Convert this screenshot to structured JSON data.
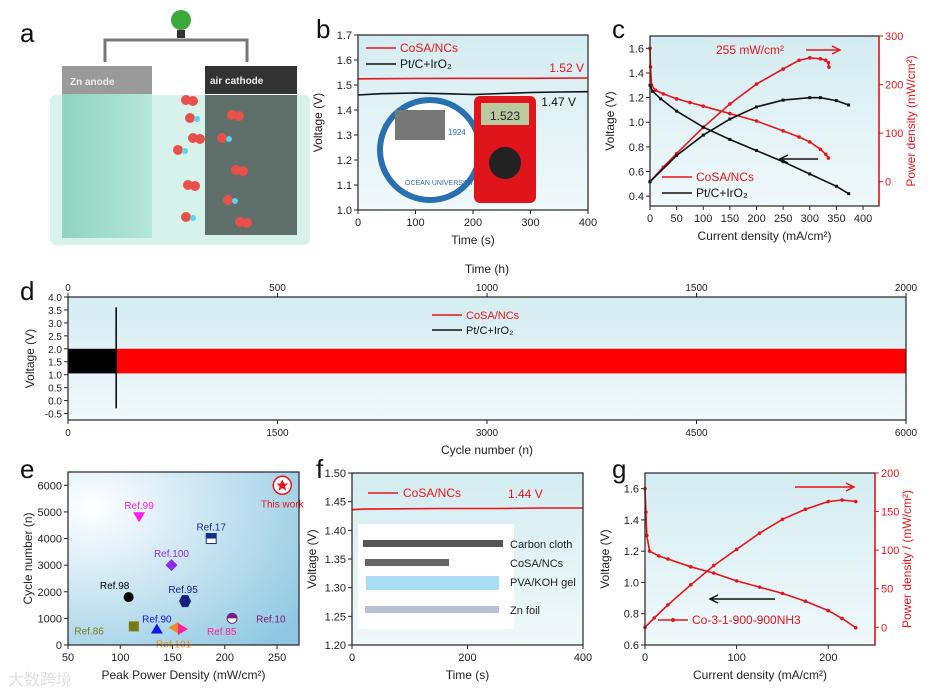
{
  "panel_labels": [
    "a",
    "b",
    "c",
    "d",
    "e",
    "f",
    "g"
  ],
  "illustration": {
    "anode_label": "Zn anode",
    "cathode_label": "air cathode"
  },
  "watermark": "大数跨境",
  "colors": {
    "red": "#e8141b",
    "black": "#111111",
    "bg_top": "#d6edf2",
    "bg_bottom": "#eef8fa"
  },
  "chart_data": [
    {
      "panel": "b",
      "type": "line",
      "title": "",
      "xlabel": "Time (s)",
      "ylabel": "Voltage (V)",
      "xlim": [
        0,
        400
      ],
      "ylim": [
        1.0,
        1.7
      ],
      "xticks": [
        "0",
        "100",
        "200",
        "300",
        "400"
      ],
      "yticks": [
        "1.0",
        "1.1",
        "1.2",
        "1.3",
        "1.4",
        "1.5",
        "1.6",
        "1.7"
      ],
      "series": [
        {
          "name": "CoSA/NCs",
          "color": "#e8141b",
          "x": [
            0,
            100,
            200,
            300,
            400
          ],
          "y": [
            1.525,
            1.526,
            1.527,
            1.527,
            1.528
          ]
        },
        {
          "name": "Pt/C+IrO₂",
          "color": "#111111",
          "x": [
            0,
            40,
            100,
            150,
            200,
            250,
            300,
            350,
            400
          ],
          "y": [
            1.46,
            1.465,
            1.468,
            1.465,
            1.462,
            1.466,
            1.47,
            1.472,
            1.473
          ]
        }
      ],
      "annotations": [
        "1.52 V",
        "1.47 V"
      ],
      "photo_text": [
        "OCEAN UNIVERSITY",
        "1924",
        "1.523"
      ]
    },
    {
      "panel": "c",
      "type": "line",
      "title": "",
      "xlabel": "Current density  (mA/cm²)",
      "ylabel": "Voltage (V)",
      "y2label": "Power density (mW/cm²)",
      "xlim": [
        0,
        430
      ],
      "ylim": [
        0.32,
        1.7
      ],
      "y2lim": [
        -50,
        300
      ],
      "xticks": [
        "0",
        "50",
        "100",
        "150",
        "200",
        "250",
        "300",
        "350",
        "400"
      ],
      "yticks": [
        "0.4",
        "0.6",
        "0.8",
        "1.0",
        "1.2",
        "1.4",
        "1.6"
      ],
      "y2ticks": [
        "0",
        "100",
        "200",
        "300"
      ],
      "series": [
        {
          "name": "CoSA/NCs",
          "axis": "left",
          "color": "#e8141b",
          "x": [
            0,
            1,
            3,
            10,
            25,
            50,
            75,
            100,
            150,
            200,
            250,
            280,
            300,
            320,
            330,
            335
          ],
          "y": [
            1.6,
            1.45,
            1.3,
            1.26,
            1.23,
            1.19,
            1.16,
            1.13,
            1.07,
            1.01,
            0.93,
            0.88,
            0.84,
            0.78,
            0.74,
            0.71
          ]
        },
        {
          "name": "CoSA/NCs power",
          "axis": "right",
          "color": "#e8141b",
          "x": [
            0,
            25,
            50,
            100,
            150,
            200,
            250,
            280,
            300,
            320,
            330,
            335,
            336
          ],
          "y": [
            0,
            30,
            58,
            112,
            160,
            201,
            232,
            250,
            255,
            253,
            250,
            245,
            236
          ]
        },
        {
          "name": "Pt/C+IrO₂",
          "axis": "left",
          "color": "#111111",
          "x": [
            0,
            5,
            20,
            50,
            100,
            150,
            200,
            250,
            300,
            350,
            373
          ],
          "y": [
            1.3,
            1.25,
            1.19,
            1.09,
            0.96,
            0.86,
            0.77,
            0.68,
            0.58,
            0.48,
            0.42
          ]
        },
        {
          "name": "Pt/C+IrO₂ power",
          "axis": "right",
          "color": "#111111",
          "x": [
            0,
            50,
            100,
            150,
            200,
            250,
            300,
            320,
            350,
            373
          ],
          "y": [
            0,
            54,
            96,
            129,
            154,
            168,
            173,
            173,
            167,
            158
          ]
        }
      ],
      "legend": [
        "CoSA/NCs",
        "Pt/C+IrO₂"
      ],
      "annotations": [
        "255 mW/cm²"
      ]
    },
    {
      "panel": "d",
      "type": "area",
      "title": "",
      "xlabel": "Cycle number (n)",
      "x2label": "Time (h)",
      "ylabel": "Voltage (V)",
      "xlim": [
        0,
        6000
      ],
      "x2lim": [
        0,
        2000
      ],
      "ylim": [
        -0.75,
        4.0
      ],
      "xticks": [
        "0",
        "1500",
        "3000",
        "4500",
        "6000"
      ],
      "x2ticks": [
        "0",
        "500",
        "1000",
        "1500",
        "2000"
      ],
      "yticks": [
        "-0.5",
        "0.0",
        "0.5",
        "1.0",
        "1.5",
        "2.0",
        "2.5",
        "3.0",
        "3.5",
        "4.0"
      ],
      "series": [
        {
          "name": "CoSA/NCs",
          "color": "#ff0000",
          "x_range": [
            340,
            6000
          ],
          "y_band": [
            1.05,
            2.0
          ]
        },
        {
          "name": "Pt/C+IrO₂",
          "color": "#000000",
          "x_range": [
            0,
            345
          ],
          "y_band": [
            1.05,
            2.0
          ],
          "spike_y": [
            -0.3,
            3.6
          ]
        }
      ],
      "legend": [
        "CoSA/NCs",
        "Pt/C+IrO₂"
      ]
    },
    {
      "panel": "e",
      "type": "scatter",
      "title": "",
      "xlabel": "Peak Power Density (mW/cm²)",
      "ylabel": "Cycle number (n)",
      "xlim": [
        50,
        271
      ],
      "ylim": [
        0,
        6500
      ],
      "xticks": [
        "50",
        "100",
        "150",
        "200",
        "250"
      ],
      "yticks": [
        "0",
        "1000",
        "2000",
        "3000",
        "4000",
        "5000",
        "6000"
      ],
      "points": [
        {
          "label": "This work",
          "x": 255,
          "y": 6000,
          "color": "#e8141b",
          "shape": "star-circle"
        },
        {
          "label": "Ref.99",
          "x": 118,
          "y": 4800,
          "color": "#ff1ee8",
          "shape": "triangle-down"
        },
        {
          "label": "Ref.17",
          "x": 187,
          "y": 4000,
          "color": "#1a2a8c",
          "shape": "square-half"
        },
        {
          "label": "Ref.100",
          "x": 149,
          "y": 3000,
          "color": "#8b2cf0",
          "shape": "diamond"
        },
        {
          "label": "Ref.98",
          "x": 108,
          "y": 1800,
          "color": "#000000",
          "shape": "circle"
        },
        {
          "label": "Ref.95",
          "x": 162,
          "y": 1650,
          "color": "#14207a",
          "shape": "hexagon"
        },
        {
          "label": "Ref.10",
          "x": 207,
          "y": 1000,
          "color": "#7a1a7a",
          "shape": "circle-half"
        },
        {
          "label": "Ref.86",
          "x": 113,
          "y": 700,
          "color": "#7a7a14",
          "shape": "square"
        },
        {
          "label": "Ref.90",
          "x": 135,
          "y": 620,
          "color": "#1414e8",
          "shape": "triangle-up"
        },
        {
          "label": "Ref.101",
          "x": 151,
          "y": 650,
          "color": "#f08a1e",
          "shape": "triangle-left"
        },
        {
          "label": "Ref.85",
          "x": 160,
          "y": 600,
          "color": "#ff1e9a",
          "shape": "triangle-right"
        }
      ]
    },
    {
      "panel": "f",
      "type": "line",
      "title": "",
      "xlabel": "Time (s)",
      "ylabel": "Voltage (V)",
      "xlim": [
        0,
        400
      ],
      "ylim": [
        1.2,
        1.5
      ],
      "xticks": [
        "0",
        "200",
        "400"
      ],
      "yticks": [
        "1.20",
        "1.25",
        "1.30",
        "1.35",
        "1.40",
        "1.45",
        "1.50"
      ],
      "series": [
        {
          "name": "CoSA/NCs",
          "color": "#e8141b",
          "x": [
            0,
            20,
            150,
            250,
            330,
            400
          ],
          "y": [
            1.436,
            1.437,
            1.438,
            1.438,
            1.439,
            1.439
          ]
        }
      ],
      "annotations": [
        "1.44 V"
      ],
      "layers": [
        "Carbon cloth",
        "CoSA/NCs",
        "PVA/KOH gel",
        "Zn foil"
      ]
    },
    {
      "panel": "g",
      "type": "line",
      "title": "",
      "xlabel": "Current density  (mA/cm²)",
      "ylabel": "Voltage (V)",
      "y2label": "Power density / (mW/cm²)",
      "xlim": [
        0,
        251
      ],
      "ylim": [
        0.6,
        1.7
      ],
      "y2lim": [
        -23,
        200
      ],
      "xticks": [
        "0",
        "100",
        "200"
      ],
      "yticks": [
        "0.6",
        "0.8",
        "1.0",
        "1.2",
        "1.4",
        "1.6"
      ],
      "y2ticks": [
        "0",
        "50",
        "100",
        "150",
        "200"
      ],
      "series": [
        {
          "name": "Co-3-1-900-900NH3",
          "axis": "left",
          "color": "#e8141b",
          "x": [
            0,
            1,
            2,
            5,
            15,
            25,
            50,
            75,
            100,
            125,
            150,
            175,
            200,
            215,
            230
          ],
          "y": [
            1.6,
            1.45,
            1.3,
            1.2,
            1.17,
            1.15,
            1.1,
            1.06,
            1.01,
            0.97,
            0.93,
            0.88,
            0.82,
            0.77,
            0.71
          ]
        },
        {
          "name": "Co-3-1-900-900NH3 power",
          "axis": "right",
          "color": "#e8141b",
          "x": [
            0,
            10,
            25,
            50,
            75,
            100,
            125,
            150,
            175,
            200,
            215,
            230
          ],
          "y": [
            0,
            12,
            29,
            55,
            80,
            101,
            122,
            140,
            153,
            163,
            165,
            163
          ]
        }
      ],
      "legend": [
        "Co-3-1-900-900NH3"
      ]
    }
  ]
}
